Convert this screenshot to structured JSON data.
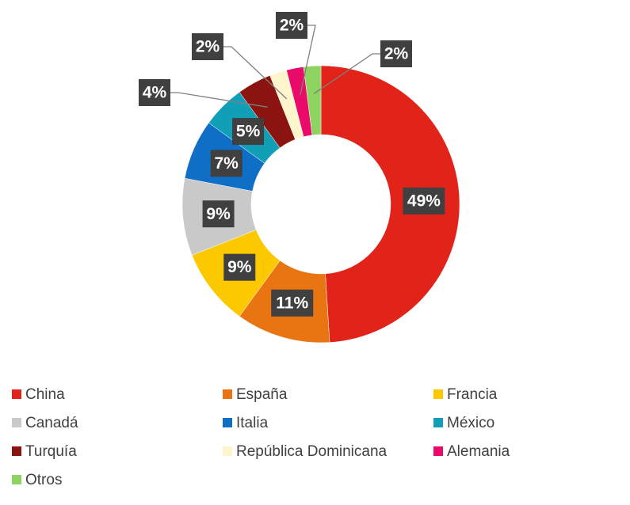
{
  "chart_data": {
    "type": "donut",
    "categories": [
      "China",
      "España",
      "Francia",
      "Canadá",
      "Italia",
      "México",
      "Turquía",
      "República Dominicana",
      "Alemania",
      "Otros"
    ],
    "values": [
      49,
      11,
      9,
      9,
      7,
      5,
      4,
      2,
      2,
      2
    ],
    "value_labels": [
      "49%",
      "11%",
      "9%",
      "9%",
      "7%",
      "5%",
      "4%",
      "2%",
      "2%",
      "2%"
    ],
    "colors": [
      "#e2231a",
      "#e87511",
      "#fcc800",
      "#c9c9c9",
      "#0f6fc6",
      "#109fb6",
      "#8b1410",
      "#fff5cc",
      "#ea0a6a",
      "#8dd35f"
    ],
    "legend": "bottom"
  }
}
